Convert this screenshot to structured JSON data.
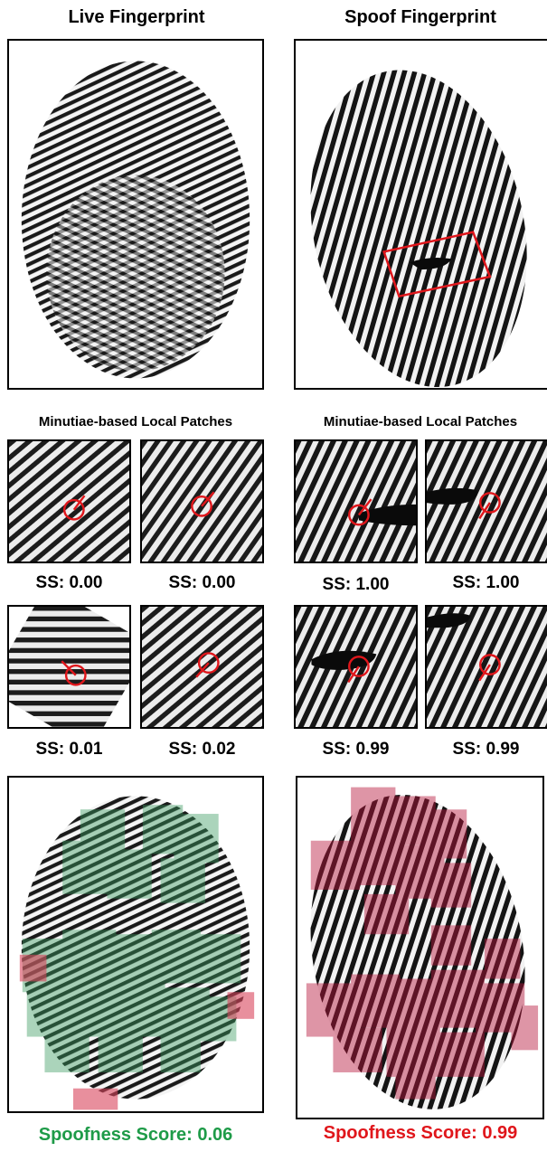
{
  "live": {
    "title": "Live Fingerprint",
    "patches_label": "Minutiae-based Local Patches",
    "ss_scores": [
      "SS: 0.00",
      "SS: 0.00",
      "SS: 0.01",
      "SS: 0.02"
    ],
    "spoofness_label": "Spoofness Score: 0.06",
    "score_color": "#1e9b48",
    "overlay_color": "#3a9a60"
  },
  "spoof": {
    "title": "Spoof Fingerprint",
    "patches_label": "Minutiae-based Local Patches",
    "ss_scores": [
      "SS: 1.00",
      "SS: 1.00",
      "SS: 0.99",
      "SS: 0.99"
    ],
    "spoofness_label": "Spoofness Score: 0.99",
    "score_color": "#e0161b",
    "overlay_color": "#b8163c"
  },
  "marker_color": "#e0161b"
}
